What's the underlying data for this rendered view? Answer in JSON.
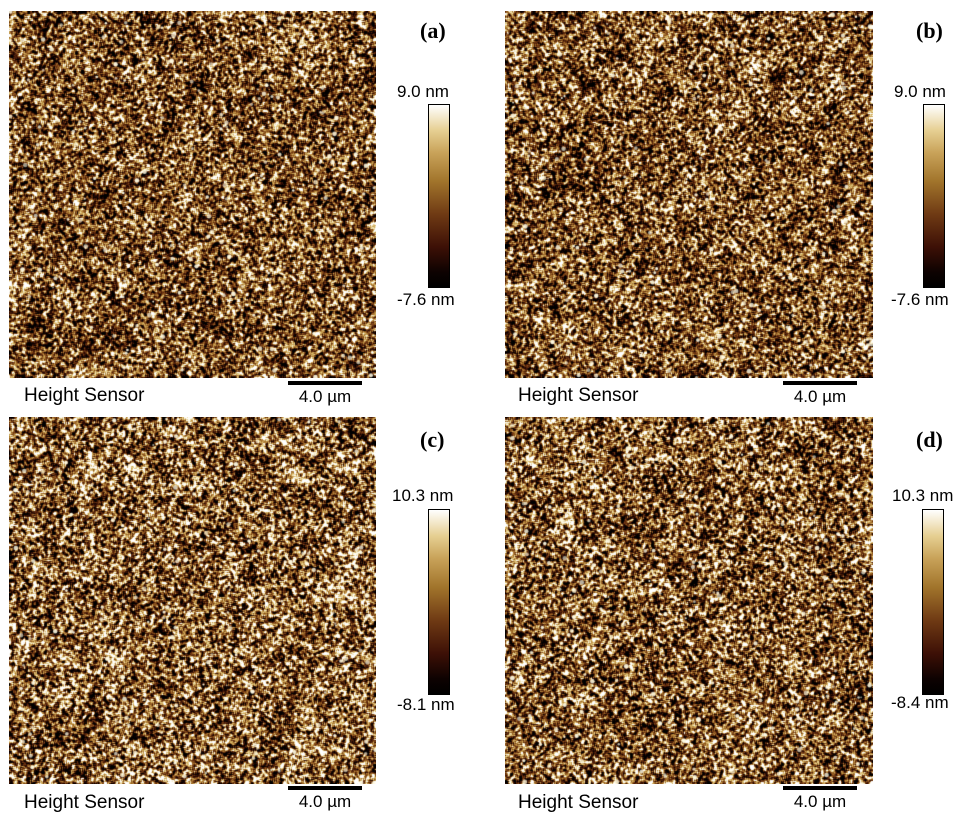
{
  "panels": [
    {
      "letter": "(a)",
      "scale_max": "9.0 nm",
      "scale_min": "-7.6 nm",
      "caption": "Height Sensor",
      "scalebar": "4.0 µm",
      "seed": 11,
      "brightness": 1.0
    },
    {
      "letter": "(b)",
      "scale_max": "9.0 nm",
      "scale_min": "-7.6 nm",
      "caption": "Height Sensor",
      "scalebar": "4.0 µm",
      "seed": 23,
      "brightness": 1.0
    },
    {
      "letter": "(c)",
      "scale_max": "10.3 nm",
      "scale_min": "-8.1 nm",
      "caption": "Height Sensor",
      "scalebar": "4.0 µm",
      "seed": 37,
      "brightness": 1.08
    },
    {
      "letter": "(d)",
      "scale_max": "10.3 nm",
      "scale_min": "-8.4 nm",
      "caption": "Height Sensor",
      "scalebar": "4.0 µm",
      "seed": 53,
      "brightness": 1.05
    }
  ],
  "colors": {
    "colormap_top": "#ffffff",
    "colormap_mid": "#a1742b",
    "colormap_bottom": "#000000"
  }
}
